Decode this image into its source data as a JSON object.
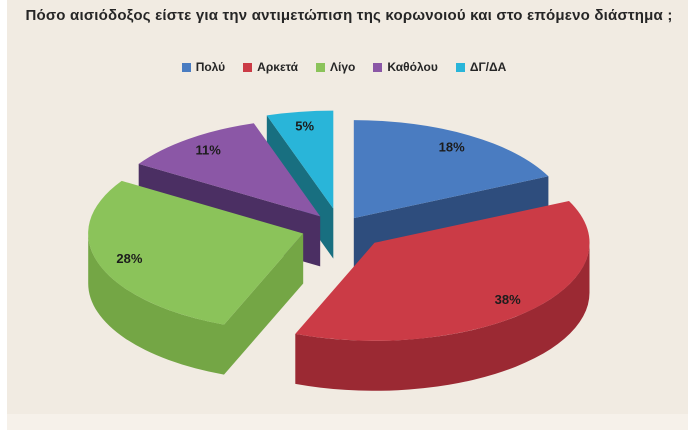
{
  "title": "Πόσο αισιόδοξος είστε για την αντιμετώπιση της κορωνοιού και στο επόμενο διάστημα ;",
  "colors": {
    "background": "#f1ebe2",
    "title_text": "#262626",
    "label_text": "#1c1c1c"
  },
  "legend": [
    {
      "label": "Πολύ",
      "color": "#4a7cc1"
    },
    {
      "label": "Αρκετά",
      "color": "#cb3b46"
    },
    {
      "label": "Λίγο",
      "color": "#8bc35a"
    },
    {
      "label": "Καθόλου",
      "color": "#8b57a6"
    },
    {
      "label": "ΔΓ/ΔΑ",
      "color": "#29b5d9"
    }
  ],
  "chart_data": {
    "type": "pie",
    "style": "3d-exploded",
    "title": "Πόσο αισιόδοξος είστε για την αντιμετώπιση της κορωνοιού και στο επόμενο διάστημα ;",
    "categories": [
      "Πολύ",
      "Αρκετά",
      "Λίγο",
      "Καθόλου",
      "ΔΓ/ΔΑ"
    ],
    "values": [
      18,
      38,
      28,
      11,
      5
    ],
    "unit": "%",
    "data_labels": [
      "18%",
      "38%",
      "28%",
      "11%",
      "5%"
    ],
    "top_colors": [
      "#4a7cc1",
      "#cb3b46",
      "#8bc35a",
      "#8b57a6",
      "#29b5d9"
    ],
    "side_colors": [
      "#2e4d7d",
      "#9b2933",
      "#74a645",
      "#4b2f63",
      "#186f80"
    ],
    "start_angle_deg": -90,
    "direction": "clockwise",
    "legend_position": "top"
  }
}
